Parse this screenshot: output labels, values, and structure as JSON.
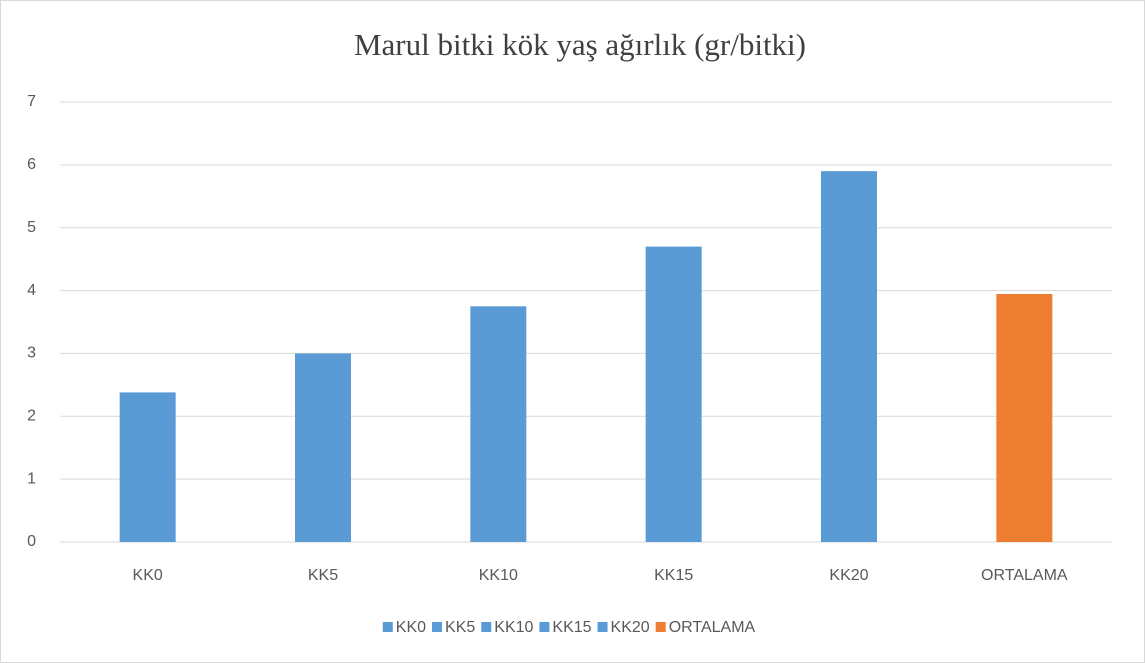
{
  "chart_data": {
    "type": "bar",
    "title": "Marul bitki kök yaş ağırlık (gr/bitki)",
    "categories": [
      "KK0",
      "KK5",
      "KK10",
      "KK15",
      "KK20",
      "ORTALAMA"
    ],
    "values": [
      2.38,
      3.0,
      3.75,
      4.7,
      5.9,
      3.946
    ],
    "colors": [
      "#5b9bd5",
      "#5b9bd5",
      "#5b9bd5",
      "#5b9bd5",
      "#5b9bd5",
      "#ed7d31"
    ],
    "ylim": [
      0,
      7
    ],
    "yticks": [
      0,
      1,
      2,
      3,
      4,
      5,
      6,
      7
    ],
    "grid": true,
    "legend": "bottom"
  }
}
